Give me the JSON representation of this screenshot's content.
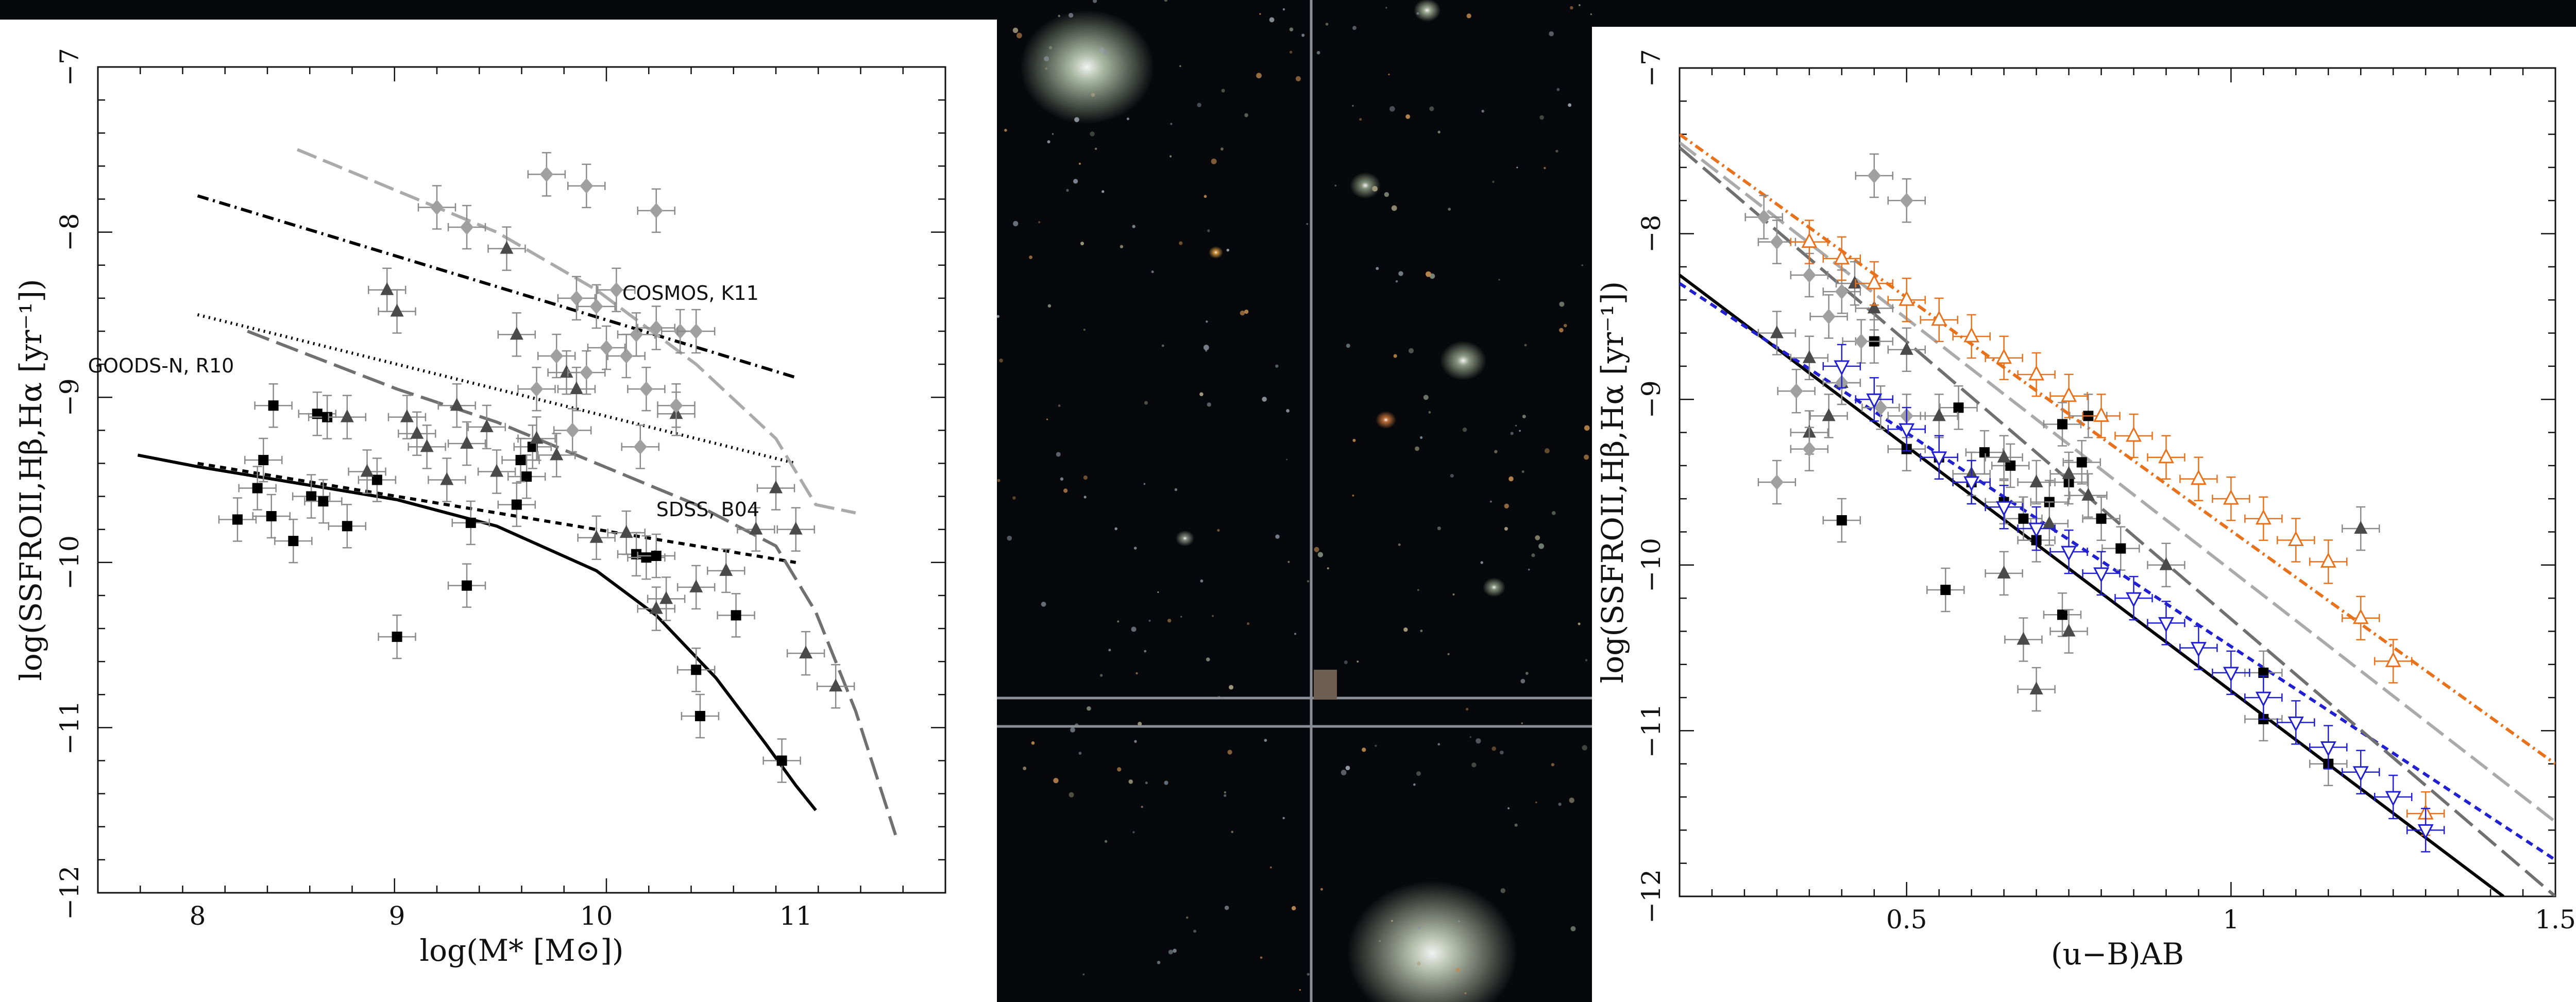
{
  "background": {
    "color": "#07080b",
    "galaxies": [
      {
        "name": "galaxy-1",
        "x": 2110,
        "y": 130,
        "r": 130,
        "color": "#b9c9b0"
      },
      {
        "name": "galaxy-2",
        "x": 2780,
        "y": 1850,
        "r": 165,
        "color": "#c8d2bc"
      },
      {
        "name": "galaxy-3",
        "x": 2840,
        "y": 700,
        "r": 45,
        "color": "#9aa890"
      },
      {
        "name": "galaxy-4",
        "x": 2650,
        "y": 360,
        "r": 30,
        "color": "#8c9a82"
      },
      {
        "name": "galaxy-5",
        "x": 2360,
        "y": 490,
        "r": 14,
        "color": "#e0a040"
      },
      {
        "name": "galaxy-6",
        "x": 2690,
        "y": 815,
        "r": 20,
        "color": "#d07a3c"
      },
      {
        "name": "galaxy-7",
        "x": 2300,
        "y": 1045,
        "r": 18,
        "color": "#8d9488"
      },
      {
        "name": "galaxy-8",
        "x": 2900,
        "y": 1140,
        "r": 22,
        "color": "#8f9a84"
      },
      {
        "name": "galaxy-9",
        "x": 2770,
        "y": 20,
        "r": 26,
        "color": "#a7b69d"
      }
    ],
    "stars": 260,
    "gridline_color": "#8a8f96"
  },
  "chart_data": [
    {
      "type": "scatter",
      "xlabel": "log(M* [M⊙])",
      "ylabel": "log(SSFROII,Hβ,Hα [yr⁻¹])",
      "xlim": [
        7.5,
        11.75
      ],
      "ylim": [
        -12,
        -7
      ],
      "x_ticks": [
        8,
        9,
        10,
        11
      ],
      "y_ticks": [
        -12,
        -11,
        -10,
        -9,
        -8,
        -7
      ],
      "annotations": [
        "COSMOS, K11",
        "GOODS-N, R10",
        "SDSS, B04"
      ],
      "annotation_positions_data": [
        [
          10.13,
          -8.41
        ],
        [
          7.45,
          -8.85
        ],
        [
          10.3,
          -9.72
        ]
      ],
      "series": [
        {
          "marker": "square",
          "color": "#000000",
          "x": [
            8.2,
            8.3,
            8.37,
            8.48,
            8.57,
            8.6,
            8.65,
            8.75,
            8.9,
            9.0,
            9.35,
            9.37,
            9.6,
            9.65,
            9.68,
            10.2,
            10.25,
            10.3,
            10.5,
            10.52,
            10.7,
            10.93,
            8.38,
            8.33,
            8.63,
            9.62
          ],
          "y": [
            -9.74,
            -9.55,
            -9.72,
            -9.87,
            -9.6,
            -9.1,
            -9.12,
            -9.78,
            -9.5,
            -10.45,
            -10.14,
            -9.76,
            -9.65,
            -9.48,
            -9.3,
            -9.95,
            -9.97,
            -9.96,
            -10.65,
            -10.93,
            -10.32,
            -11.2,
            -9.05,
            -9.38,
            -9.63,
            -9.38
          ]
        },
        {
          "marker": "triangle",
          "color": "#4a4a4a",
          "x": [
            8.95,
            9.0,
            9.05,
            9.1,
            9.3,
            9.35,
            9.55,
            9.6,
            9.7,
            9.8,
            9.9,
            9.5,
            9.25,
            9.15,
            8.85,
            8.75,
            9.45,
            10.0,
            10.15,
            10.3,
            10.35,
            10.5,
            10.65,
            10.8,
            10.9,
            11.0,
            11.05,
            11.2,
            10.4,
            9.85
          ],
          "y": [
            -8.35,
            -8.48,
            -9.12,
            -9.22,
            -9.05,
            -9.28,
            -8.1,
            -8.62,
            -9.25,
            -9.35,
            -8.95,
            -9.45,
            -9.5,
            -9.3,
            -9.45,
            -9.12,
            -9.18,
            -9.85,
            -9.82,
            -10.28,
            -10.22,
            -10.15,
            -10.05,
            -9.8,
            -9.55,
            -9.8,
            -10.55,
            -10.75,
            -9.1,
            -8.85
          ]
        },
        {
          "marker": "diamond",
          "color": "#a0a0a0",
          "x": [
            9.2,
            9.35,
            9.75,
            9.95,
            10.3,
            9.9,
            10.0,
            10.1,
            10.2,
            10.3,
            10.42,
            10.5,
            9.8,
            9.95,
            10.15,
            10.25,
            10.4,
            9.7,
            10.05,
            9.88,
            10.22
          ],
          "y": [
            -7.85,
            -7.97,
            -7.65,
            -7.72,
            -7.87,
            -8.4,
            -8.45,
            -8.35,
            -8.62,
            -8.58,
            -8.6,
            -8.6,
            -8.75,
            -8.85,
            -8.75,
            -8.95,
            -9.05,
            -8.95,
            -8.7,
            -9.2,
            -9.3
          ]
        }
      ],
      "lines": [
        {
          "name": "solid-black",
          "color": "#000000",
          "dash": "solid",
          "x": [
            7.7,
            8.0,
            8.5,
            9.0,
            9.5,
            10.0,
            10.3,
            10.6,
            10.85,
            11.0,
            11.1
          ],
          "y": [
            -9.35,
            -9.42,
            -9.52,
            -9.62,
            -9.78,
            -10.05,
            -10.32,
            -10.7,
            -11.1,
            -11.35,
            -11.5
          ]
        },
        {
          "name": "short-dash-black",
          "color": "#000000",
          "dash": "12,10",
          "x": [
            8.0,
            11.0
          ],
          "y": [
            -9.4,
            -10.0
          ]
        },
        {
          "name": "dotted-black",
          "color": "#000000",
          "dash": "3,8",
          "x": [
            8.0,
            11.0
          ],
          "y": [
            -8.5,
            -9.4
          ]
        },
        {
          "name": "dash-dot-black",
          "color": "#000000",
          "dash": "22,9,4,9",
          "x": [
            8.0,
            11.0
          ],
          "y": [
            -7.78,
            -8.88
          ]
        },
        {
          "name": "long-dash-gray",
          "color": "#707070",
          "dash": "45,15",
          "x": [
            8.25,
            9.0,
            9.5,
            10.0,
            10.5,
            10.9,
            11.1,
            11.3,
            11.5
          ],
          "y": [
            -8.6,
            -8.95,
            -9.15,
            -9.4,
            -9.65,
            -9.9,
            -10.3,
            -10.9,
            -11.65
          ]
        },
        {
          "name": "dash-light-gray",
          "color": "#aaaaaa",
          "dash": "40,14",
          "x": [
            8.5,
            9.0,
            9.5,
            10.0,
            10.5,
            10.9,
            11.1,
            11.3
          ],
          "y": [
            -7.5,
            -7.75,
            -8.0,
            -8.35,
            -8.8,
            -9.25,
            -9.65,
            -9.7
          ]
        }
      ]
    },
    {
      "type": "scatter",
      "xlabel": "(u−B)AB",
      "ylabel": "log(SSFROII,Hβ,Hα [yr⁻¹])",
      "xlim": [
        0.15,
        1.5
      ],
      "ylim": [
        -12,
        -7
      ],
      "x_ticks": [
        0.5,
        1,
        1.5
      ],
      "x_tick_labels": [
        "0.5",
        "1",
        "1.5"
      ],
      "y_ticks": [
        -12,
        -11,
        -10,
        -9,
        -8,
        -7
      ],
      "series": [
        {
          "marker": "square",
          "color": "#000000",
          "x": [
            0.4,
            0.45,
            0.5,
            0.55,
            0.58,
            0.6,
            0.62,
            0.65,
            0.68,
            0.7,
            0.72,
            0.75,
            0.77,
            0.8,
            0.83,
            0.56,
            0.74,
            1.05,
            1.05,
            1.15,
            0.78,
            0.74,
            0.66
          ],
          "y": [
            -9.73,
            -8.65,
            -9.3,
            -9.35,
            -9.05,
            -9.5,
            -9.32,
            -9.62,
            -9.72,
            -9.85,
            -9.62,
            -9.5,
            -9.38,
            -9.72,
            -9.9,
            -10.15,
            -10.3,
            -10.65,
            -10.93,
            -11.2,
            -9.1,
            -9.15,
            -9.4
          ]
        },
        {
          "marker": "triangle",
          "color": "#4a4a4a",
          "x": [
            0.3,
            0.35,
            0.38,
            0.4,
            0.42,
            0.45,
            0.5,
            0.55,
            0.6,
            0.65,
            0.7,
            0.72,
            0.75,
            0.78,
            0.65,
            0.7,
            0.75,
            0.9,
            1.2,
            0.68,
            0.35
          ],
          "y": [
            -8.6,
            -8.75,
            -9.1,
            -8.9,
            -8.3,
            -8.45,
            -8.7,
            -9.1,
            -9.45,
            -9.35,
            -9.5,
            -9.75,
            -9.45,
            -9.58,
            -10.05,
            -10.75,
            -10.4,
            -10.0,
            -9.78,
            -10.45,
            -9.2
          ]
        },
        {
          "marker": "diamond",
          "color": "#a0a0a0",
          "x": [
            0.28,
            0.3,
            0.35,
            0.4,
            0.45,
            0.5,
            0.38,
            0.3,
            0.33,
            0.4,
            0.46,
            0.35,
            0.43,
            0.5
          ],
          "y": [
            -7.9,
            -8.05,
            -8.25,
            -8.35,
            -7.65,
            -7.8,
            -8.5,
            -9.5,
            -8.95,
            -8.9,
            -9.05,
            -9.3,
            -8.65,
            -9.1
          ]
        },
        {
          "marker": "triangle-open",
          "color": "#e8721c",
          "x": [
            0.35,
            0.4,
            0.45,
            0.5,
            0.55,
            0.6,
            0.65,
            0.7,
            0.75,
            0.8,
            0.85,
            0.9,
            0.95,
            1.0,
            1.05,
            1.1,
            1.15,
            1.2,
            1.25,
            1.3
          ],
          "y": [
            -8.05,
            -8.15,
            -8.3,
            -8.4,
            -8.52,
            -8.62,
            -8.75,
            -8.85,
            -8.98,
            -9.1,
            -9.22,
            -9.35,
            -9.48,
            -9.6,
            -9.72,
            -9.85,
            -9.98,
            -10.32,
            -10.58,
            -11.5
          ]
        },
        {
          "marker": "triangle-down-open",
          "color": "#2020d0",
          "x": [
            0.4,
            0.45,
            0.5,
            0.55,
            0.6,
            0.65,
            0.7,
            0.75,
            0.8,
            0.85,
            0.9,
            0.95,
            1.0,
            1.05,
            1.1,
            1.15,
            1.2,
            1.25,
            1.3
          ],
          "y": [
            -8.8,
            -9.0,
            -9.18,
            -9.35,
            -9.5,
            -9.65,
            -9.78,
            -9.92,
            -10.05,
            -10.2,
            -10.35,
            -10.5,
            -10.65,
            -10.8,
            -10.95,
            -11.1,
            -11.25,
            -11.4,
            -11.6
          ]
        }
      ],
      "lines": [
        {
          "name": "solid-black",
          "color": "#000000",
          "dash": "solid",
          "x": [
            0.15,
            1.42
          ],
          "y": [
            -8.25,
            -12.0
          ]
        },
        {
          "name": "dashed-blue",
          "color": "#2020d0",
          "dash": "14,10",
          "x": [
            0.15,
            1.5
          ],
          "y": [
            -8.3,
            -11.78
          ]
        },
        {
          "name": "long-dash-gray",
          "color": "#707070",
          "dash": "45,15",
          "x": [
            0.15,
            1.5
          ],
          "y": [
            -7.48,
            -12.0
          ]
        },
        {
          "name": "dash-light-gray",
          "color": "#aaaaaa",
          "dash": "40,14",
          "x": [
            0.15,
            1.5
          ],
          "y": [
            -7.45,
            -11.55
          ]
        },
        {
          "name": "dash-dot-orange",
          "color": "#e8721c",
          "dash": "18,8,4,8",
          "x": [
            0.15,
            1.5
          ],
          "y": [
            -7.4,
            -11.2
          ]
        }
      ]
    }
  ]
}
